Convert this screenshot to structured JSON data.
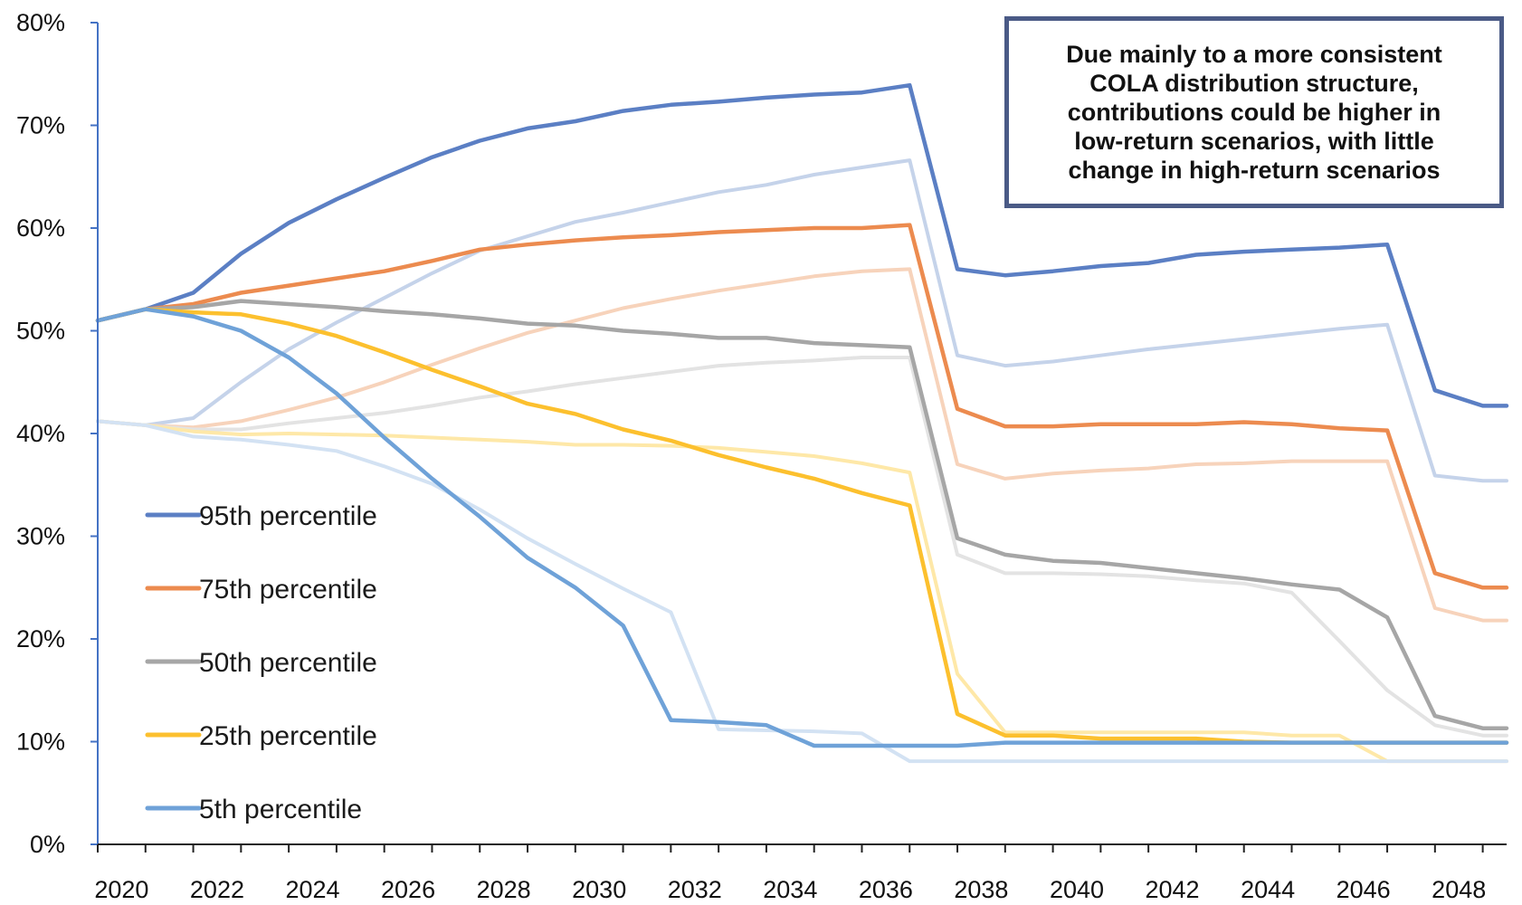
{
  "chart_data": {
    "type": "line",
    "title": "",
    "xlabel": "",
    "ylabel": "",
    "xlim": [
      2019.5,
      2049
    ],
    "ylim": [
      0,
      80
    ],
    "ytick_values": [
      0,
      10,
      20,
      30,
      40,
      50,
      60,
      70,
      80
    ],
    "ytick_labels": [
      "0%",
      "10%",
      "20%",
      "30%",
      "40%",
      "50%",
      "60%",
      "70%",
      "80%"
    ],
    "xtick_values": [
      2020,
      2022,
      2024,
      2026,
      2028,
      2030,
      2032,
      2034,
      2036,
      2038,
      2040,
      2042,
      2044,
      2046,
      2048
    ],
    "xtick_labels": [
      "2020",
      "2022",
      "2024",
      "2026",
      "2028",
      "2030",
      "2032",
      "2034",
      "2036",
      "2038",
      "2040",
      "2042",
      "2044",
      "2046",
      "2048"
    ],
    "grid": false,
    "legend_position": "left",
    "annotation": "Due mainly to a more consistent\nCOLA distribution structure,\ncontributions could be higher in\nlow-return scenarios, with little\nchange in high-return scenarios",
    "x": [
      2019.5,
      2020.5,
      2021.5,
      2022.5,
      2023.5,
      2024.5,
      2025.5,
      2026.5,
      2027.5,
      2028.5,
      2029.5,
      2030.5,
      2031.5,
      2032.5,
      2033.5,
      2034.5,
      2035.5,
      2036.5,
      2037.5,
      2038.5,
      2039.5,
      2040.5,
      2041.5,
      2042.5,
      2043.5,
      2044.5,
      2045.5,
      2046.5,
      2047.5,
      2048.5,
      2049.0
    ],
    "series": [
      {
        "name": "",
        "role": "baseline",
        "color": "#c5d3ea",
        "opacity": 1,
        "values": [
          41.2,
          40.8,
          41.5,
          45.0,
          48.2,
          50.8,
          53.2,
          55.6,
          57.8,
          59.2,
          60.6,
          61.5,
          62.5,
          63.5,
          64.2,
          65.2,
          65.9,
          66.6,
          47.6,
          46.6,
          47.0,
          47.6,
          48.2,
          48.7,
          49.2,
          49.7,
          50.2,
          50.6,
          35.9,
          35.4,
          35.4
        ]
      },
      {
        "name": "",
        "role": "baseline",
        "color": "#f7d3bb",
        "opacity": 1,
        "values": [
          41.2,
          40.8,
          40.6,
          41.2,
          42.3,
          43.5,
          45.0,
          46.7,
          48.3,
          49.8,
          51.0,
          52.2,
          53.1,
          53.9,
          54.6,
          55.3,
          55.8,
          56.0,
          37.0,
          35.6,
          36.1,
          36.4,
          36.6,
          37.0,
          37.1,
          37.3,
          37.3,
          37.3,
          23.0,
          21.8,
          21.8
        ]
      },
      {
        "name": "",
        "role": "baseline",
        "color": "#e3e3e3",
        "opacity": 1,
        "values": [
          41.2,
          40.8,
          40.4,
          40.4,
          41.0,
          41.5,
          42.0,
          42.7,
          43.5,
          44.1,
          44.8,
          45.4,
          46.0,
          46.6,
          46.9,
          47.1,
          47.4,
          47.4,
          28.2,
          26.4,
          26.4,
          26.3,
          26.1,
          25.7,
          25.4,
          24.5,
          19.8,
          15.0,
          11.6,
          10.6,
          10.6
        ]
      },
      {
        "name": "",
        "role": "baseline",
        "color": "#fee8a8",
        "opacity": 1,
        "values": [
          41.2,
          40.8,
          40.2,
          39.9,
          40.0,
          39.9,
          39.8,
          39.6,
          39.4,
          39.2,
          38.9,
          38.9,
          38.8,
          38.6,
          38.2,
          37.8,
          37.1,
          36.2,
          16.6,
          10.9,
          10.9,
          10.9,
          10.9,
          10.9,
          10.9,
          10.6,
          10.6,
          8.1,
          8.1,
          8.1,
          8.1
        ]
      },
      {
        "name": "",
        "role": "baseline",
        "color": "#d3e2f3",
        "opacity": 1,
        "values": [
          41.2,
          40.8,
          39.7,
          39.4,
          38.9,
          38.3,
          36.8,
          35.1,
          32.6,
          29.8,
          27.3,
          24.9,
          22.6,
          11.2,
          11.1,
          11.0,
          10.8,
          8.1,
          8.1,
          8.1,
          8.1,
          8.1,
          8.1,
          8.1,
          8.1,
          8.1,
          8.1,
          8.1,
          8.1,
          8.1,
          8.1
        ]
      },
      {
        "name": "95th percentile",
        "role": "proposed",
        "color": "#5b7fc4",
        "values": [
          51.0,
          52.1,
          53.7,
          57.5,
          60.5,
          62.8,
          64.9,
          66.9,
          68.5,
          69.7,
          70.4,
          71.4,
          72.0,
          72.3,
          72.7,
          73.0,
          73.2,
          73.9,
          56.0,
          55.4,
          55.8,
          56.3,
          56.6,
          57.4,
          57.7,
          57.9,
          58.1,
          58.4,
          44.2,
          42.7,
          42.7
        ]
      },
      {
        "name": "75th percentile",
        "role": "proposed",
        "color": "#ec8b4f",
        "values": [
          51.0,
          52.1,
          52.6,
          53.7,
          54.4,
          55.1,
          55.8,
          56.8,
          57.9,
          58.4,
          58.8,
          59.1,
          59.3,
          59.6,
          59.8,
          60.0,
          60.0,
          60.3,
          42.4,
          40.7,
          40.7,
          40.9,
          40.9,
          40.9,
          41.1,
          40.9,
          40.5,
          40.3,
          26.4,
          25.0,
          25.0
        ]
      },
      {
        "name": "50th percentile",
        "role": "proposed",
        "color": "#a6a6a6",
        "values": [
          51.0,
          52.1,
          52.3,
          52.9,
          52.6,
          52.3,
          51.9,
          51.6,
          51.2,
          50.7,
          50.5,
          50.0,
          49.7,
          49.3,
          49.3,
          48.8,
          48.6,
          48.4,
          29.8,
          28.2,
          27.6,
          27.4,
          26.9,
          26.4,
          25.9,
          25.3,
          24.8,
          22.1,
          12.5,
          11.3,
          11.3
        ]
      },
      {
        "name": "25th percentile",
        "role": "proposed",
        "color": "#fcc02e",
        "values": [
          51.0,
          52.1,
          51.8,
          51.6,
          50.7,
          49.5,
          47.9,
          46.2,
          44.6,
          42.9,
          41.9,
          40.4,
          39.3,
          37.9,
          36.7,
          35.6,
          34.2,
          33.0,
          12.7,
          10.6,
          10.6,
          10.3,
          10.3,
          10.3,
          10.0,
          9.9,
          9.9,
          9.9,
          9.9,
          9.9,
          9.9
        ]
      },
      {
        "name": "5th percentile",
        "role": "proposed",
        "color": "#6fa2d8",
        "values": [
          51.0,
          52.1,
          51.4,
          50.0,
          47.4,
          43.9,
          39.6,
          35.6,
          31.9,
          27.9,
          25.0,
          21.3,
          12.1,
          11.9,
          11.6,
          9.6,
          9.6,
          9.6,
          9.6,
          9.9,
          9.9,
          9.9,
          9.9,
          9.9,
          9.9,
          9.9,
          9.9,
          9.9,
          9.9,
          9.9,
          9.9
        ]
      }
    ]
  }
}
